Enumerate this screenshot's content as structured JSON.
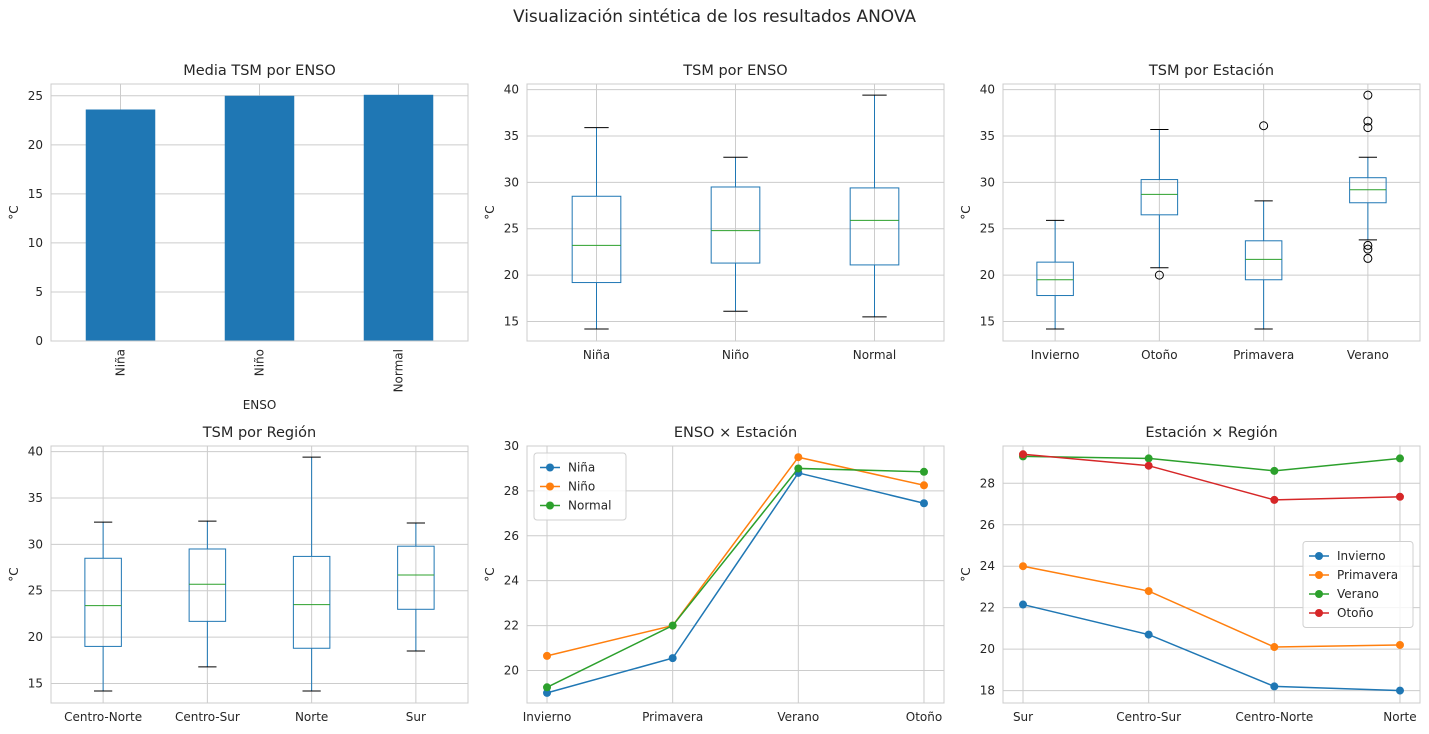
{
  "suptitle": "Visualización sintética de los resultados ANOVA",
  "colors": {
    "blue": "#1f77b4",
    "orange": "#ff7f0e",
    "green": "#2ca02c",
    "red": "#d62728",
    "grid": "#cccccc",
    "median": "#2ca02c"
  },
  "chart_data": [
    {
      "id": "p1",
      "type": "bar",
      "title": "Media TSM por ENSO",
      "xlabel": "ENSO",
      "ylabel": "°C",
      "categories": [
        "Niña",
        "Niño",
        "Normal"
      ],
      "values": [
        23.6,
        25.0,
        25.1
      ],
      "ylim": [
        0,
        26.2
      ],
      "yticks": [
        0,
        5,
        10,
        15,
        20,
        25
      ],
      "xtick_rotation": 90,
      "grid": true
    },
    {
      "id": "p2",
      "type": "box",
      "title": "TSM por ENSO",
      "xlabel": "",
      "ylabel": "°C",
      "categories": [
        "Niña",
        "Niño",
        "Normal"
      ],
      "boxes": [
        {
          "whislo": 14.2,
          "q1": 19.2,
          "med": 23.2,
          "q3": 28.5,
          "whishi": 35.9,
          "fliers": []
        },
        {
          "whislo": 16.1,
          "q1": 21.3,
          "med": 24.8,
          "q3": 29.5,
          "whishi": 32.7,
          "fliers": []
        },
        {
          "whislo": 15.5,
          "q1": 21.1,
          "med": 25.9,
          "q3": 29.4,
          "whishi": 39.4,
          "fliers": []
        }
      ],
      "ylim": [
        12.9,
        40.6
      ],
      "yticks": [
        15,
        20,
        25,
        30,
        35,
        40
      ],
      "grid": true
    },
    {
      "id": "p3",
      "type": "box",
      "title": "TSM por Estación",
      "xlabel": "",
      "ylabel": "°C",
      "categories": [
        "Invierno",
        "Otoño",
        "Primavera",
        "Verano"
      ],
      "boxes": [
        {
          "whislo": 14.2,
          "q1": 17.8,
          "med": 19.5,
          "q3": 21.4,
          "whishi": 25.9,
          "fliers": []
        },
        {
          "whislo": 20.8,
          "q1": 26.5,
          "med": 28.7,
          "q3": 30.3,
          "whishi": 35.7,
          "fliers": [
            20.0
          ]
        },
        {
          "whislo": 14.2,
          "q1": 19.5,
          "med": 21.7,
          "q3": 23.7,
          "whishi": 28.0,
          "fliers": [
            36.1
          ]
        },
        {
          "whislo": 23.8,
          "q1": 27.8,
          "med": 29.2,
          "q3": 30.5,
          "whishi": 32.7,
          "fliers": [
            39.4,
            36.6,
            35.9,
            23.2,
            22.8,
            21.8
          ]
        }
      ],
      "ylim": [
        12.9,
        40.6
      ],
      "yticks": [
        15,
        20,
        25,
        30,
        35,
        40
      ],
      "grid": true
    },
    {
      "id": "p4",
      "type": "box",
      "title": "TSM por Región",
      "xlabel": "",
      "ylabel": "°C",
      "categories": [
        "Centro-Norte",
        "Centro-Sur",
        "Norte",
        "Sur"
      ],
      "boxes": [
        {
          "whislo": 14.2,
          "q1": 19.0,
          "med": 23.4,
          "q3": 28.5,
          "whishi": 32.4,
          "fliers": []
        },
        {
          "whislo": 16.8,
          "q1": 21.7,
          "med": 25.7,
          "q3": 29.5,
          "whishi": 32.5,
          "fliers": []
        },
        {
          "whislo": 14.2,
          "q1": 18.8,
          "med": 23.5,
          "q3": 28.7,
          "whishi": 39.4,
          "fliers": []
        },
        {
          "whislo": 18.5,
          "q1": 23.0,
          "med": 26.7,
          "q3": 29.8,
          "whishi": 32.3,
          "fliers": []
        }
      ],
      "ylim": [
        12.9,
        40.6
      ],
      "yticks": [
        15,
        20,
        25,
        30,
        35,
        40
      ],
      "grid": true
    },
    {
      "id": "p5",
      "type": "line",
      "title": "ENSO × Estación",
      "xlabel": "",
      "ylabel": "°C",
      "categories": [
        "Invierno",
        "Primavera",
        "Verano",
        "Otoño"
      ],
      "series": [
        {
          "name": "Niña",
          "color": "#1f77b4",
          "values": [
            19.0,
            20.55,
            28.8,
            27.45
          ]
        },
        {
          "name": "Niño",
          "color": "#ff7f0e",
          "values": [
            20.65,
            22.0,
            29.5,
            28.25
          ]
        },
        {
          "name": "Normal",
          "color": "#2ca02c",
          "values": [
            19.25,
            22.0,
            29.0,
            28.85
          ]
        }
      ],
      "ylim": [
        18.55,
        30.0
      ],
      "yticks": [
        20,
        22,
        24,
        26,
        28,
        30
      ],
      "legend": "top-left",
      "grid": true
    },
    {
      "id": "p6",
      "type": "line",
      "title": "Estación × Región",
      "xlabel": "",
      "ylabel": "°C",
      "categories": [
        "Sur",
        "Centro-Sur",
        "Centro-Norte",
        "Norte"
      ],
      "series": [
        {
          "name": "Invierno",
          "color": "#1f77b4",
          "values": [
            22.15,
            20.7,
            18.2,
            18.0
          ]
        },
        {
          "name": "Primavera",
          "color": "#ff7f0e",
          "values": [
            24.0,
            22.8,
            20.1,
            20.2
          ]
        },
        {
          "name": "Verano",
          "color": "#2ca02c",
          "values": [
            29.3,
            29.2,
            28.6,
            29.2
          ]
        },
        {
          "name": "Otoño",
          "color": "#d62728",
          "values": [
            29.4,
            28.85,
            27.2,
            27.35
          ]
        }
      ],
      "ylim": [
        17.4,
        29.8
      ],
      "yticks": [
        18,
        20,
        22,
        24,
        26,
        28
      ],
      "legend": "center-right",
      "grid": true
    }
  ]
}
